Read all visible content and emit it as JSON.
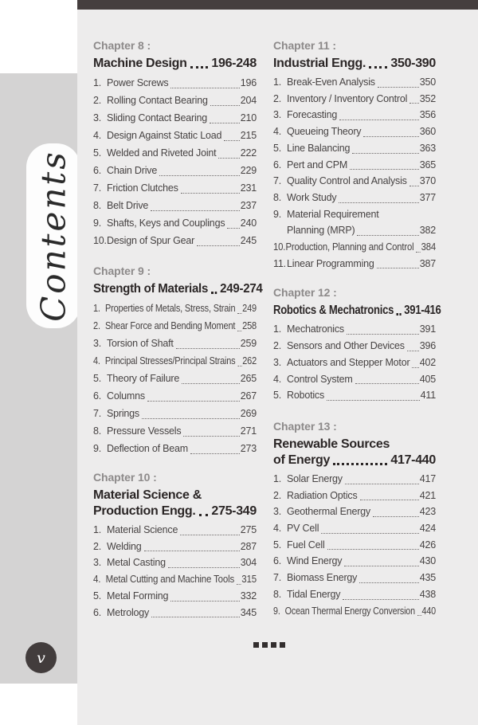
{
  "page": {
    "sidebar_title": "Contents",
    "page_number": "v"
  },
  "footer": {
    "ornament_squares": 4
  },
  "colors": {
    "top_bar": "#453e3e",
    "page_bg": "#ffffff",
    "margin_bg": "#d4d3d3",
    "content_bg": "#edecec",
    "chapter_label": "#8d8a8a",
    "title_text": "#2b2626",
    "item_text": "#474343",
    "leader_dots": "#6f6b6b",
    "badge_bg": "#423c3c",
    "badge_text": "#ffffff",
    "ornament": "#332e2e",
    "tab_bg": "#fdfdfd",
    "tab_text": "#2a2a2a"
  },
  "columns": [
    {
      "chapters": [
        {
          "label": "Chapter 8 :",
          "title_lines": [
            {
              "text": "Machine Design",
              "pages": "196-248"
            }
          ],
          "items": [
            {
              "num": "1.",
              "label": "Power Screws",
              "page": "196"
            },
            {
              "num": "2.",
              "label": "Rolling Contact Bearing",
              "page": "204"
            },
            {
              "num": "3.",
              "label": "Sliding Contact Bearing",
              "page": "210"
            },
            {
              "num": "4.",
              "label": "Design Against Static Load",
              "page": "215"
            },
            {
              "num": "5.",
              "label": "Welded and Riveted Joint",
              "page": "222"
            },
            {
              "num": "6.",
              "label": "Chain Drive",
              "page": "229"
            },
            {
              "num": "7.",
              "label": "Friction Clutches",
              "page": "231"
            },
            {
              "num": "8.",
              "label": "Belt Drive",
              "page": "237"
            },
            {
              "num": "9.",
              "label": "Shafts, Keys and Couplings",
              "page": "240"
            },
            {
              "num": "10.",
              "label": "Design of Spur Gear",
              "page": "245"
            }
          ]
        },
        {
          "label": "Chapter 9 :",
          "title_lines": [
            {
              "text": "Strength of Materials",
              "pages": "249-274"
            }
          ],
          "items": [
            {
              "num": "1.",
              "label": "Properties of Metals, Stress, Strain",
              "page": "249"
            },
            {
              "num": "2.",
              "label": "Shear Force and Bending Moment",
              "page": "258"
            },
            {
              "num": "3.",
              "label": "Torsion of Shaft",
              "page": "259"
            },
            {
              "num": "4.",
              "label": "Principal Stresses/Principal Strains",
              "page": "262"
            },
            {
              "num": "5.",
              "label": "Theory of Failure",
              "page": "265"
            },
            {
              "num": "6.",
              "label": "Columns",
              "page": "267"
            },
            {
              "num": "7.",
              "label": "Springs",
              "page": "269"
            },
            {
              "num": "8.",
              "label": "Pressure Vessels",
              "page": "271"
            },
            {
              "num": "9.",
              "label": "Deflection of Beam",
              "page": "273"
            }
          ]
        },
        {
          "label": "Chapter 10 :",
          "title_lines": [
            {
              "text": "Material Science &"
            },
            {
              "text": "Production Engg.",
              "pages": "275-349"
            }
          ],
          "items": [
            {
              "num": "1.",
              "label": "Material Science",
              "page": "275"
            },
            {
              "num": "2.",
              "label": "Welding",
              "page": "287"
            },
            {
              "num": "3.",
              "label": "Metal Casting",
              "page": "304"
            },
            {
              "num": "4.",
              "label": "Metal Cutting and Machine Tools",
              "page": "315"
            },
            {
              "num": "5.",
              "label": "Metal Forming",
              "page": "332"
            },
            {
              "num": "6.",
              "label": "Metrology",
              "page": "345"
            }
          ]
        }
      ]
    },
    {
      "chapters": [
        {
          "label": "Chapter 11 :",
          "title_lines": [
            {
              "text": "Industrial Engg.",
              "pages": "350-390"
            }
          ],
          "items": [
            {
              "num": "1.",
              "label": "Break-Even Analysis",
              "page": "350"
            },
            {
              "num": "2.",
              "label": "Inventory / Inventory Control",
              "page": "352"
            },
            {
              "num": "3.",
              "label": "Forecasting",
              "page": "356"
            },
            {
              "num": "4.",
              "label": "Queueing Theory",
              "page": "360"
            },
            {
              "num": "5.",
              "label": "Line Balancing",
              "page": "363"
            },
            {
              "num": "6.",
              "label": "Pert and CPM",
              "page": "365"
            },
            {
              "num": "7.",
              "label": "Quality Control and Analysis",
              "page": "370"
            },
            {
              "num": "8.",
              "label": "Work Study",
              "page": "377"
            },
            {
              "num": "9.",
              "label": "Material Requirement",
              "label2": "Planning (MRP)",
              "page": "382"
            },
            {
              "num": "10.",
              "label": "Production, Planning and Control",
              "page": "384"
            },
            {
              "num": "11.",
              "label": "Linear Programming",
              "page": "387"
            }
          ]
        },
        {
          "label": "Chapter 12 :",
          "title_lines": [
            {
              "text": "Robotics & Mechatronics",
              "pages": "391-416"
            }
          ],
          "items": [
            {
              "num": "1.",
              "label": "Mechatronics",
              "page": "391"
            },
            {
              "num": "2.",
              "label": "Sensors and Other Devices",
              "page": "396"
            },
            {
              "num": "3.",
              "label": "Actuators and Stepper Motor",
              "page": "402"
            },
            {
              "num": "4.",
              "label": "Control System",
              "page": "405"
            },
            {
              "num": "5.",
              "label": "Robotics",
              "page": "411"
            }
          ]
        },
        {
          "label": "Chapter 13 :",
          "title_lines": [
            {
              "text": "Renewable Sources"
            },
            {
              "text": "of Energy",
              "pages": "417-440"
            }
          ],
          "items": [
            {
              "num": "1.",
              "label": "Solar Energy",
              "page": "417"
            },
            {
              "num": "2.",
              "label": "Radiation Optics",
              "page": "421"
            },
            {
              "num": "3.",
              "label": "Geothermal Energy",
              "page": "423"
            },
            {
              "num": "4.",
              "label": "PV Cell",
              "page": "424"
            },
            {
              "num": "5.",
              "label": "Fuel Cell",
              "page": "426"
            },
            {
              "num": "6.",
              "label": "Wind Energy",
              "page": "430"
            },
            {
              "num": "7.",
              "label": "Biomass Energy",
              "page": "435"
            },
            {
              "num": "8.",
              "label": "Tidal Energy",
              "page": "438"
            },
            {
              "num": "9.",
              "label": "Ocean Thermal Energy Conversion",
              "page": "440"
            }
          ]
        }
      ]
    }
  ]
}
